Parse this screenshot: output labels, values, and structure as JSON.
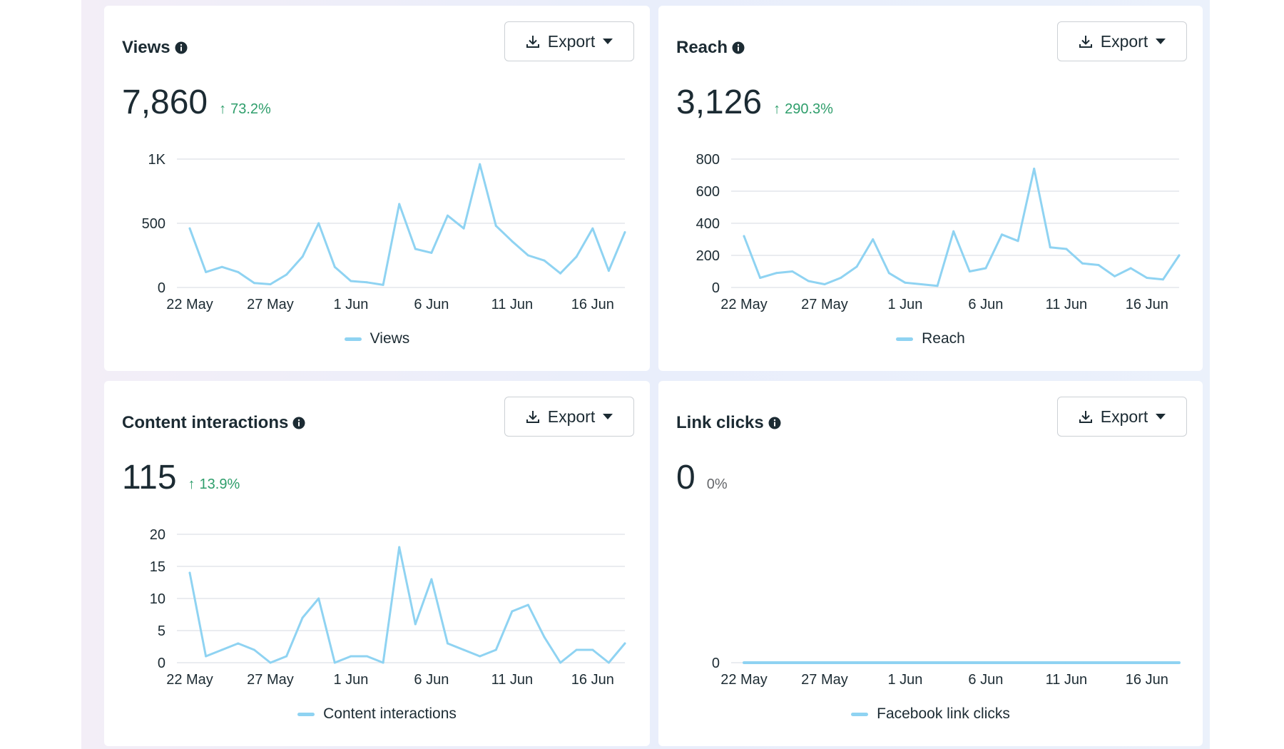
{
  "cards": [
    {
      "title": "Views",
      "export_label": "Export",
      "value": "7,860",
      "change": "73.2%",
      "direction": "up",
      "legend": "Views"
    },
    {
      "title": "Reach",
      "export_label": "Export",
      "value": "3,126",
      "change": "290.3%",
      "direction": "up",
      "legend": "Reach"
    },
    {
      "title": "Content interactions",
      "export_label": "Export",
      "value": "115",
      "change": "13.9%",
      "direction": "up",
      "legend": "Content interactions"
    },
    {
      "title": "Link clicks",
      "export_label": "Export",
      "value": "0",
      "change": "0%",
      "direction": "none",
      "legend": "Facebook link clicks"
    }
  ],
  "colors": {
    "line": "#8fd3f2",
    "positive": "#2e9e6b",
    "text": "#1c2b33",
    "grid": "#e4e6eb"
  },
  "chart_data": [
    {
      "type": "line",
      "series": [
        {
          "name": "Views",
          "values": [
            460,
            120,
            160,
            120,
            35,
            25,
            100,
            240,
            500,
            160,
            50,
            40,
            20,
            650,
            300,
            270,
            560,
            460,
            960,
            480,
            360,
            250,
            210,
            110,
            240,
            460,
            130,
            430
          ]
        }
      ],
      "x_ticks": [
        "22 May",
        "27 May",
        "1 Jun",
        "6 Jun",
        "11 Jun",
        "16 Jun"
      ],
      "y_ticks": [
        "0",
        "500",
        "1K"
      ],
      "ylim": [
        0,
        1000
      ]
    },
    {
      "type": "line",
      "series": [
        {
          "name": "Reach",
          "values": [
            320,
            60,
            90,
            100,
            40,
            20,
            60,
            130,
            300,
            90,
            30,
            20,
            10,
            350,
            100,
            120,
            330,
            290,
            740,
            250,
            240,
            150,
            140,
            70,
            120,
            60,
            50,
            200
          ]
        }
      ],
      "x_ticks": [
        "22 May",
        "27 May",
        "1 Jun",
        "6 Jun",
        "11 Jun",
        "16 Jun"
      ],
      "y_ticks": [
        "0",
        "200",
        "400",
        "600",
        "800"
      ],
      "ylim": [
        0,
        800
      ]
    },
    {
      "type": "line",
      "series": [
        {
          "name": "Content interactions",
          "values": [
            14,
            1,
            2,
            3,
            2,
            0,
            1,
            7,
            10,
            0,
            1,
            1,
            0,
            18,
            6,
            13,
            3,
            2,
            1,
            2,
            8,
            9,
            4,
            0,
            2,
            2,
            0,
            3
          ]
        }
      ],
      "x_ticks": [
        "22 May",
        "27 May",
        "1 Jun",
        "6 Jun",
        "11 Jun",
        "16 Jun"
      ],
      "y_ticks": [
        "0",
        "5",
        "10",
        "15",
        "20"
      ],
      "ylim": [
        0,
        20
      ]
    },
    {
      "type": "line",
      "series": [
        {
          "name": "Facebook link clicks",
          "values": [
            0,
            0,
            0,
            0,
            0,
            0,
            0,
            0,
            0,
            0,
            0,
            0,
            0,
            0,
            0,
            0,
            0,
            0,
            0,
            0,
            0,
            0,
            0,
            0,
            0,
            0,
            0,
            0
          ]
        }
      ],
      "x_ticks": [
        "22 May",
        "27 May",
        "1 Jun",
        "6 Jun",
        "11 Jun",
        "16 Jun"
      ],
      "y_ticks": [
        "0"
      ],
      "ylim": [
        0,
        1
      ]
    }
  ]
}
